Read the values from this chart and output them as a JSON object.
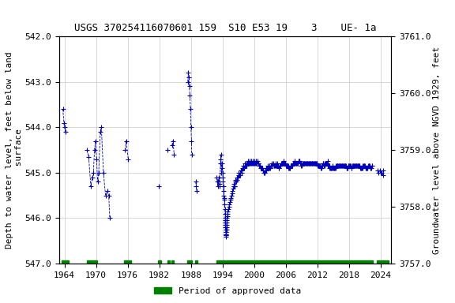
{
  "title": "USGS 370254116070601 159  S10 E53 19    3    UE- 1a",
  "ylabel_left": "Depth to water level, feet below land\n surface",
  "ylabel_right": "Groundwater level above NGVD 1929, feet",
  "ylim_left": [
    547.0,
    542.0
  ],
  "ylim_right": [
    3757.0,
    3761.0
  ],
  "xlim": [
    1963,
    2026
  ],
  "yticks_left": [
    542.0,
    543.0,
    544.0,
    545.0,
    546.0,
    547.0
  ],
  "yticks_right": [
    3757.0,
    3758.0,
    3759.0,
    3760.0,
    3761.0
  ],
  "xticks": [
    1964,
    1970,
    1976,
    1982,
    1988,
    1994,
    2000,
    2006,
    2012,
    2018,
    2024
  ],
  "background_color": "#ffffff",
  "grid_color": "#c8c8c8",
  "data_color": "#0000bb",
  "approved_color": "#008000",
  "legend_label": "Period of approved data",
  "approved_periods": [
    [
      1963.5,
      1964.8
    ],
    [
      1968.3,
      1970.2
    ],
    [
      1975.3,
      1976.6
    ],
    [
      1981.8,
      1982.3
    ],
    [
      1983.5,
      1984.0
    ],
    [
      1984.3,
      1984.7
    ],
    [
      1987.3,
      1988.2
    ],
    [
      1988.8,
      1989.2
    ],
    [
      1992.8,
      1994.5
    ],
    [
      1994.7,
      2022.5
    ],
    [
      2023.3,
      2025.5
    ]
  ],
  "data_segments": [
    [
      [
        1963.7,
        543.6
      ],
      [
        1963.9,
        543.9
      ],
      [
        1964.0,
        544.0
      ],
      [
        1964.2,
        544.1
      ]
    ],
    [
      [
        1968.3,
        544.5
      ],
      [
        1968.6,
        544.65
      ],
      [
        1969.0,
        545.3
      ],
      [
        1969.3,
        545.1
      ],
      [
        1969.5,
        545.0
      ],
      [
        1969.7,
        544.5
      ],
      [
        1969.9,
        544.3
      ],
      [
        1970.1,
        544.7
      ],
      [
        1970.3,
        545.2
      ],
      [
        1970.5,
        545.0
      ],
      [
        1970.8,
        544.1
      ],
      [
        1971.0,
        544.0
      ],
      [
        1971.4,
        545.0
      ],
      [
        1971.8,
        545.5
      ],
      [
        1972.1,
        545.4
      ],
      [
        1972.4,
        545.5
      ],
      [
        1972.6,
        546.0
      ]
    ],
    [
      [
        1975.5,
        544.5
      ],
      [
        1975.7,
        544.3
      ],
      [
        1976.1,
        544.7
      ]
    ],
    [
      [
        1981.9,
        545.3
      ]
    ],
    [
      [
        1983.6,
        544.5
      ]
    ],
    [
      [
        1984.4,
        544.4
      ],
      [
        1984.6,
        544.3
      ],
      [
        1984.8,
        544.6
      ]
    ],
    [
      [
        1987.4,
        543.0
      ],
      [
        1987.5,
        542.8
      ],
      [
        1987.6,
        542.9
      ],
      [
        1987.7,
        543.1
      ],
      [
        1987.8,
        543.3
      ],
      [
        1987.9,
        543.6
      ],
      [
        1988.0,
        544.0
      ],
      [
        1988.1,
        544.3
      ],
      [
        1988.15,
        544.6
      ]
    ],
    [
      [
        1988.9,
        545.2
      ],
      [
        1989.0,
        545.3
      ],
      [
        1989.1,
        545.4
      ]
    ],
    [
      [
        1992.9,
        545.1
      ],
      [
        1993.0,
        545.2
      ],
      [
        1993.1,
        545.3
      ],
      [
        1993.2,
        545.2
      ],
      [
        1993.3,
        545.1
      ],
      [
        1993.4,
        545.25
      ],
      [
        1993.5,
        545.3
      ],
      [
        1993.6,
        544.8
      ],
      [
        1993.65,
        544.7
      ],
      [
        1993.7,
        544.6
      ],
      [
        1993.8,
        545.0
      ],
      [
        1993.85,
        544.9
      ],
      [
        1993.9,
        544.8
      ],
      [
        1994.0,
        545.0
      ],
      [
        1994.05,
        545.1
      ],
      [
        1994.1,
        545.2
      ],
      [
        1994.15,
        545.3
      ],
      [
        1994.2,
        545.4
      ],
      [
        1994.25,
        545.5
      ],
      [
        1994.3,
        545.55
      ],
      [
        1994.35,
        545.6
      ],
      [
        1994.4,
        545.7
      ],
      [
        1994.42,
        545.8
      ],
      [
        1994.44,
        545.9
      ],
      [
        1994.46,
        546.0
      ],
      [
        1994.48,
        546.05
      ],
      [
        1994.5,
        546.1
      ],
      [
        1994.52,
        546.15
      ],
      [
        1994.54,
        546.2
      ],
      [
        1994.56,
        546.25
      ],
      [
        1994.58,
        546.3
      ],
      [
        1994.6,
        546.35
      ],
      [
        1994.62,
        546.38
      ],
      [
        1994.64,
        546.4
      ],
      [
        1994.66,
        546.38
      ],
      [
        1994.68,
        546.35
      ],
      [
        1994.7,
        546.3
      ],
      [
        1994.72,
        546.25
      ],
      [
        1994.74,
        546.2
      ],
      [
        1994.76,
        546.15
      ],
      [
        1994.78,
        546.1
      ],
      [
        1994.8,
        546.05
      ],
      [
        1994.85,
        546.0
      ],
      [
        1994.9,
        545.95
      ],
      [
        1994.95,
        545.9
      ],
      [
        1995.0,
        545.85
      ],
      [
        1995.1,
        545.8
      ],
      [
        1995.2,
        545.75
      ],
      [
        1995.3,
        545.7
      ],
      [
        1995.4,
        545.65
      ],
      [
        1995.5,
        545.6
      ],
      [
        1995.6,
        545.55
      ],
      [
        1995.7,
        545.5
      ],
      [
        1995.8,
        545.45
      ],
      [
        1995.9,
        545.4
      ],
      [
        1996.0,
        545.35
      ],
      [
        1996.1,
        545.3
      ],
      [
        1996.15,
        545.3
      ],
      [
        1996.2,
        545.25
      ],
      [
        1996.3,
        545.3
      ],
      [
        1996.35,
        545.3
      ],
      [
        1996.4,
        545.2
      ],
      [
        1996.5,
        545.15
      ],
      [
        1996.6,
        545.2
      ],
      [
        1996.7,
        545.15
      ],
      [
        1996.8,
        545.1
      ],
      [
        1996.9,
        545.1
      ],
      [
        1997.0,
        545.05
      ],
      [
        1997.1,
        545.0
      ],
      [
        1997.2,
        545.05
      ],
      [
        1997.3,
        545.05
      ],
      [
        1997.4,
        545.0
      ],
      [
        1997.5,
        544.95
      ],
      [
        1997.6,
        545.0
      ],
      [
        1997.7,
        544.95
      ],
      [
        1997.8,
        544.9
      ],
      [
        1997.9,
        544.9
      ],
      [
        1998.0,
        544.85
      ],
      [
        1998.1,
        544.9
      ],
      [
        1998.2,
        544.85
      ],
      [
        1998.3,
        544.8
      ],
      [
        1998.4,
        544.85
      ],
      [
        1998.5,
        544.8
      ],
      [
        1998.6,
        544.85
      ],
      [
        1998.7,
        544.8
      ],
      [
        1998.8,
        544.8
      ],
      [
        1998.9,
        544.75
      ],
      [
        1999.0,
        544.8
      ],
      [
        1999.1,
        544.75
      ],
      [
        1999.2,
        544.8
      ],
      [
        1999.3,
        544.8
      ],
      [
        1999.4,
        544.75
      ],
      [
        1999.5,
        544.8
      ],
      [
        1999.6,
        544.8
      ],
      [
        1999.7,
        544.75
      ],
      [
        1999.8,
        544.8
      ],
      [
        1999.9,
        544.8
      ],
      [
        2000.0,
        544.75
      ],
      [
        2000.1,
        544.8
      ],
      [
        2000.2,
        544.8
      ],
      [
        2000.3,
        544.75
      ],
      [
        2000.4,
        544.8
      ],
      [
        2000.5,
        544.8
      ],
      [
        2000.6,
        544.75
      ],
      [
        2000.7,
        544.8
      ],
      [
        2000.8,
        544.8
      ],
      [
        2000.9,
        544.85
      ],
      [
        2001.0,
        544.85
      ],
      [
        2001.1,
        544.85
      ],
      [
        2001.2,
        544.9
      ],
      [
        2001.3,
        544.9
      ],
      [
        2001.4,
        544.9
      ],
      [
        2001.5,
        544.9
      ],
      [
        2001.6,
        544.95
      ],
      [
        2001.7,
        544.95
      ],
      [
        2001.8,
        545.0
      ],
      [
        2001.9,
        545.0
      ],
      [
        2002.0,
        545.0
      ],
      [
        2002.1,
        544.95
      ],
      [
        2002.2,
        544.9
      ],
      [
        2002.3,
        544.95
      ],
      [
        2002.4,
        544.9
      ],
      [
        2002.5,
        544.85
      ],
      [
        2002.6,
        544.9
      ],
      [
        2002.7,
        544.9
      ],
      [
        2002.8,
        544.85
      ],
      [
        2002.9,
        544.9
      ],
      [
        2003.0,
        544.9
      ],
      [
        2003.1,
        544.85
      ],
      [
        2003.2,
        544.85
      ],
      [
        2003.3,
        544.8
      ],
      [
        2003.4,
        544.85
      ],
      [
        2003.5,
        544.85
      ],
      [
        2003.6,
        544.8
      ],
      [
        2003.7,
        544.85
      ],
      [
        2003.8,
        544.85
      ],
      [
        2003.9,
        544.85
      ],
      [
        2004.0,
        544.85
      ],
      [
        2004.1,
        544.8
      ],
      [
        2004.2,
        544.85
      ],
      [
        2004.3,
        544.85
      ],
      [
        2004.4,
        544.8
      ],
      [
        2004.5,
        544.85
      ],
      [
        2004.6,
        544.9
      ],
      [
        2004.7,
        544.9
      ],
      [
        2004.8,
        544.85
      ],
      [
        2004.9,
        544.85
      ],
      [
        2005.0,
        544.85
      ],
      [
        2005.1,
        544.8
      ],
      [
        2005.2,
        544.8
      ],
      [
        2005.3,
        544.8
      ],
      [
        2005.4,
        544.8
      ],
      [
        2005.5,
        544.8
      ],
      [
        2005.6,
        544.75
      ],
      [
        2005.7,
        544.8
      ],
      [
        2005.8,
        544.8
      ],
      [
        2005.9,
        544.8
      ],
      [
        2006.0,
        544.85
      ],
      [
        2006.1,
        544.85
      ],
      [
        2006.2,
        544.85
      ],
      [
        2006.3,
        544.85
      ],
      [
        2006.4,
        544.85
      ],
      [
        2006.5,
        544.9
      ],
      [
        2006.6,
        544.9
      ],
      [
        2006.7,
        544.9
      ],
      [
        2006.8,
        544.9
      ],
      [
        2006.9,
        544.85
      ],
      [
        2007.0,
        544.85
      ],
      [
        2007.1,
        544.85
      ],
      [
        2007.2,
        544.85
      ],
      [
        2007.3,
        544.8
      ],
      [
        2007.4,
        544.8
      ],
      [
        2007.5,
        544.8
      ],
      [
        2007.6,
        544.75
      ],
      [
        2007.7,
        544.8
      ],
      [
        2007.8,
        544.8
      ],
      [
        2007.9,
        544.8
      ],
      [
        2008.0,
        544.8
      ],
      [
        2008.1,
        544.8
      ],
      [
        2008.2,
        544.8
      ],
      [
        2008.3,
        544.8
      ],
      [
        2008.4,
        544.75
      ],
      [
        2008.5,
        544.75
      ],
      [
        2008.6,
        544.75
      ],
      [
        2008.7,
        544.8
      ],
      [
        2008.8,
        544.8
      ],
      [
        2008.9,
        544.85
      ],
      [
        2009.0,
        544.85
      ],
      [
        2009.1,
        544.8
      ],
      [
        2009.2,
        544.8
      ],
      [
        2009.3,
        544.8
      ],
      [
        2009.4,
        544.8
      ],
      [
        2009.5,
        544.8
      ],
      [
        2009.6,
        544.8
      ],
      [
        2009.7,
        544.8
      ],
      [
        2009.8,
        544.8
      ],
      [
        2009.9,
        544.8
      ],
      [
        2010.0,
        544.8
      ],
      [
        2010.1,
        544.8
      ],
      [
        2010.2,
        544.8
      ],
      [
        2010.3,
        544.8
      ],
      [
        2010.4,
        544.8
      ],
      [
        2010.5,
        544.8
      ],
      [
        2010.6,
        544.8
      ],
      [
        2010.7,
        544.8
      ],
      [
        2010.8,
        544.8
      ],
      [
        2010.9,
        544.8
      ],
      [
        2011.0,
        544.8
      ],
      [
        2011.1,
        544.8
      ],
      [
        2011.2,
        544.8
      ],
      [
        2011.3,
        544.8
      ],
      [
        2011.4,
        544.8
      ],
      [
        2011.5,
        544.8
      ],
      [
        2011.6,
        544.8
      ],
      [
        2011.7,
        544.8
      ],
      [
        2011.8,
        544.8
      ],
      [
        2011.9,
        544.8
      ],
      [
        2012.0,
        544.85
      ],
      [
        2012.1,
        544.85
      ],
      [
        2012.2,
        544.85
      ],
      [
        2012.3,
        544.85
      ],
      [
        2012.4,
        544.85
      ],
      [
        2012.5,
        544.85
      ],
      [
        2012.6,
        544.9
      ],
      [
        2012.7,
        544.9
      ],
      [
        2012.8,
        544.85
      ],
      [
        2012.9,
        544.85
      ],
      [
        2013.0,
        544.8
      ],
      [
        2013.1,
        544.8
      ],
      [
        2013.2,
        544.85
      ],
      [
        2013.3,
        544.85
      ],
      [
        2013.4,
        544.8
      ],
      [
        2013.5,
        544.8
      ],
      [
        2013.6,
        544.8
      ],
      [
        2013.7,
        544.8
      ],
      [
        2013.8,
        544.8
      ],
      [
        2013.9,
        544.75
      ],
      [
        2014.0,
        544.85
      ],
      [
        2014.1,
        544.85
      ],
      [
        2014.2,
        544.85
      ],
      [
        2014.3,
        544.9
      ],
      [
        2014.4,
        544.9
      ],
      [
        2014.5,
        544.9
      ],
      [
        2014.6,
        544.9
      ],
      [
        2014.7,
        544.9
      ],
      [
        2014.8,
        544.85
      ],
      [
        2014.9,
        544.9
      ],
      [
        2015.0,
        544.9
      ],
      [
        2015.1,
        544.9
      ],
      [
        2015.2,
        544.9
      ],
      [
        2015.3,
        544.9
      ],
      [
        2015.4,
        544.9
      ],
      [
        2015.5,
        544.85
      ],
      [
        2015.6,
        544.85
      ],
      [
        2015.7,
        544.85
      ],
      [
        2015.8,
        544.85
      ],
      [
        2015.9,
        544.85
      ],
      [
        2016.0,
        544.85
      ],
      [
        2016.1,
        544.85
      ],
      [
        2016.2,
        544.85
      ],
      [
        2016.3,
        544.85
      ],
      [
        2016.4,
        544.85
      ],
      [
        2016.5,
        544.85
      ],
      [
        2016.6,
        544.85
      ],
      [
        2016.7,
        544.85
      ],
      [
        2016.8,
        544.85
      ],
      [
        2016.9,
        544.85
      ],
      [
        2017.0,
        544.85
      ],
      [
        2017.1,
        544.85
      ],
      [
        2017.2,
        544.85
      ],
      [
        2017.3,
        544.85
      ],
      [
        2017.4,
        544.85
      ],
      [
        2017.5,
        544.9
      ],
      [
        2017.6,
        544.9
      ],
      [
        2017.7,
        544.9
      ],
      [
        2017.8,
        544.85
      ],
      [
        2017.9,
        544.85
      ],
      [
        2018.0,
        544.85
      ],
      [
        2018.1,
        544.85
      ],
      [
        2018.2,
        544.85
      ],
      [
        2018.3,
        544.85
      ],
      [
        2018.4,
        544.9
      ],
      [
        2018.5,
        544.9
      ],
      [
        2018.6,
        544.85
      ],
      [
        2018.7,
        544.85
      ],
      [
        2018.8,
        544.85
      ],
      [
        2018.9,
        544.85
      ],
      [
        2019.0,
        544.85
      ],
      [
        2019.1,
        544.85
      ],
      [
        2019.2,
        544.85
      ],
      [
        2019.3,
        544.85
      ],
      [
        2019.4,
        544.85
      ],
      [
        2019.5,
        544.85
      ],
      [
        2019.6,
        544.85
      ],
      [
        2019.7,
        544.85
      ],
      [
        2019.8,
        544.85
      ],
      [
        2019.9,
        544.85
      ],
      [
        2020.0,
        544.85
      ],
      [
        2020.1,
        544.9
      ],
      [
        2020.2,
        544.9
      ],
      [
        2020.3,
        544.9
      ],
      [
        2020.4,
        544.9
      ],
      [
        2020.5,
        544.9
      ],
      [
        2020.6,
        544.85
      ],
      [
        2020.7,
        544.85
      ],
      [
        2020.8,
        544.85
      ],
      [
        2020.9,
        544.85
      ],
      [
        2021.0,
        544.85
      ],
      [
        2021.1,
        544.9
      ],
      [
        2021.2,
        544.9
      ],
      [
        2021.3,
        544.9
      ],
      [
        2021.4,
        544.9
      ],
      [
        2021.5,
        544.9
      ],
      [
        2021.6,
        544.85
      ],
      [
        2021.7,
        544.85
      ],
      [
        2021.8,
        544.85
      ],
      [
        2021.9,
        544.85
      ],
      [
        2022.0,
        544.9
      ],
      [
        2022.1,
        544.9
      ],
      [
        2022.2,
        544.9
      ],
      [
        2022.3,
        544.85
      ],
      [
        2022.4,
        544.85
      ]
    ],
    [
      [
        2023.4,
        544.95
      ],
      [
        2023.6,
        545.0
      ],
      [
        2023.8,
        544.95
      ],
      [
        2024.0,
        545.0
      ],
      [
        2024.2,
        545.0
      ],
      [
        2024.4,
        545.05
      ],
      [
        2024.5,
        544.95
      ]
    ]
  ],
  "title_fontsize": 9,
  "axis_fontsize": 8,
  "tick_fontsize": 8
}
